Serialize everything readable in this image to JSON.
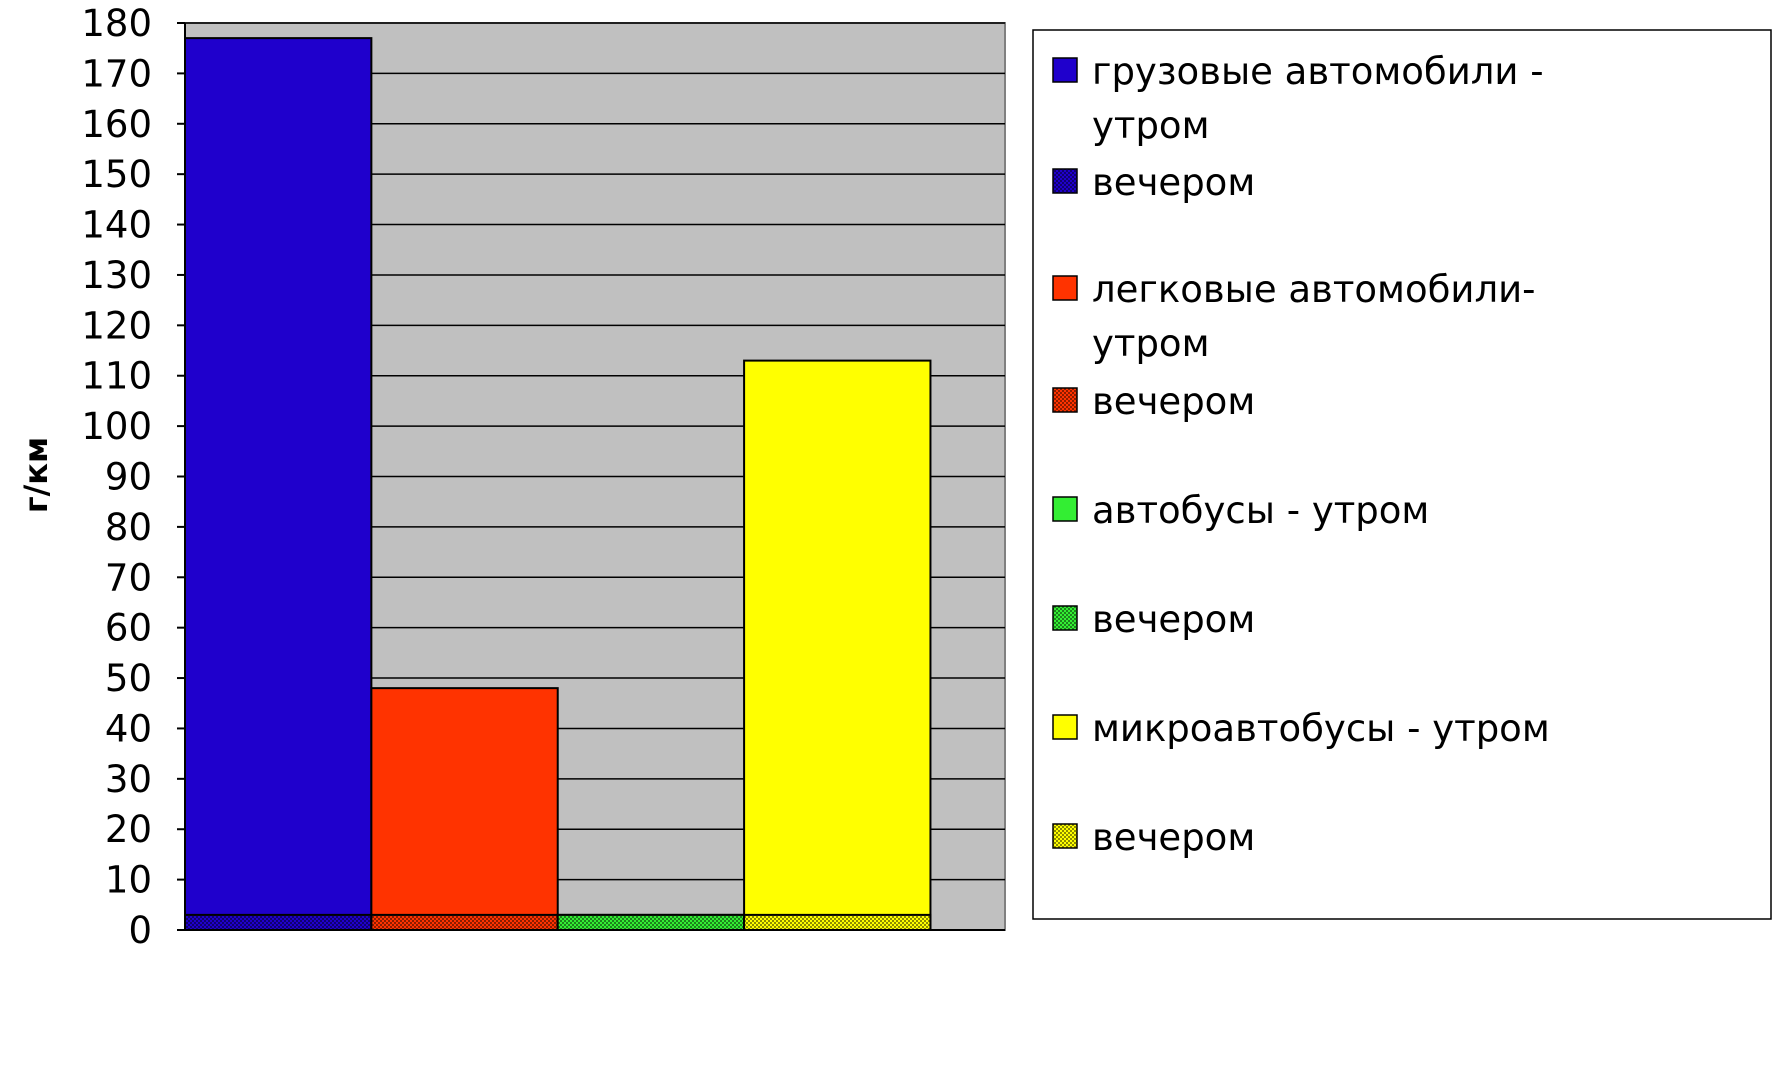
{
  "chart_data": {
    "type": "bar",
    "title": "",
    "xlabel": "",
    "ylabel": "г/км",
    "ylim": [
      0,
      180
    ],
    "ytick_step": 10,
    "grid": true,
    "legend_position": "right",
    "series": [
      {
        "name": "грузовые автомобили - утром",
        "value": 177,
        "color": "#1F00CC",
        "pattern": "solid"
      },
      {
        "name": "вечером",
        "value": 3,
        "color": "#1F00CC",
        "pattern": "dots"
      },
      {
        "name": "легковые автомобили- утром",
        "value": 48,
        "color": "#FF3300",
        "pattern": "solid"
      },
      {
        "name": "вечером",
        "value": 3,
        "color": "#FF3300",
        "pattern": "dots"
      },
      {
        "name": "автобусы - утром",
        "value": 3,
        "color": "#33EE33",
        "pattern": "solid"
      },
      {
        "name": "вечером",
        "value": 3,
        "color": "#33EE33",
        "pattern": "dots"
      },
      {
        "name": "микроавтобусы - утром",
        "value": 113,
        "color": "#FFFF00",
        "pattern": "solid"
      },
      {
        "name": "вечером",
        "value": 3,
        "color": "#FFFF00",
        "pattern": "dots"
      }
    ],
    "colors": {
      "plot_background": "#C0C0C0",
      "grid": "#000000",
      "axis": "#000000"
    }
  }
}
